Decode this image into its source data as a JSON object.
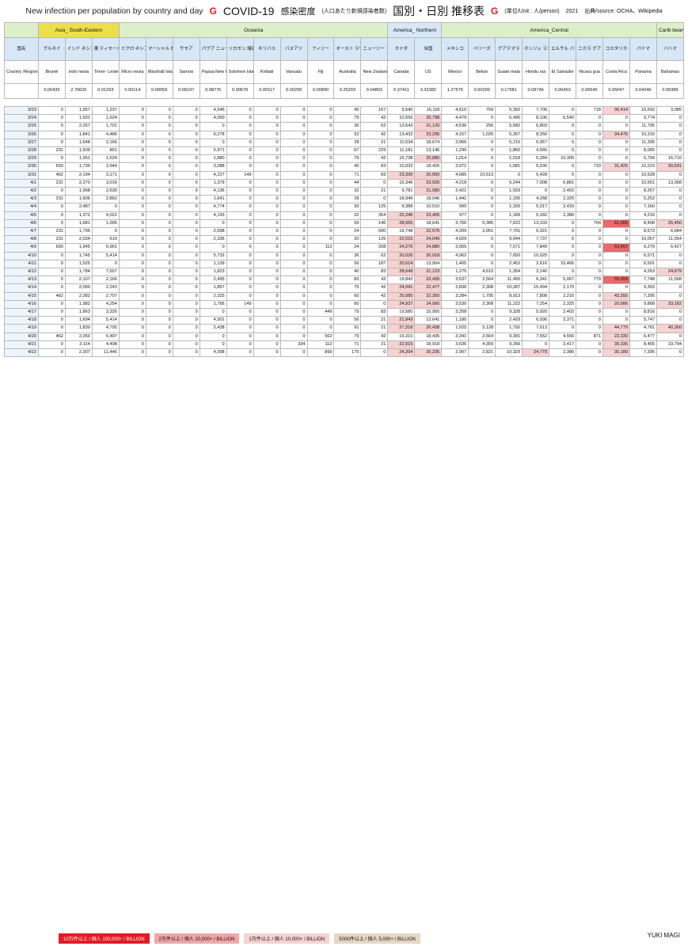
{
  "header": {
    "title_en": "New infection per population by country and day",
    "title_g": "G",
    "title_main": "COVID-19",
    "title_jp": "感染密度",
    "title_jp_small": "(人口あたり新規感染者数)",
    "title_jp2": "国別・日別 推移表",
    "title_g2": "G",
    "unit": "(単位/Unit : 人/person)",
    "year": "2021",
    "source": "出典/source: OCHA、Wikipedia"
  },
  "regions": [
    "Asia_ South-Eastern",
    "Oceania",
    "America_ Northern",
    "America_Central",
    "Carib bean"
  ],
  "label_kokumei": "国名",
  "label_region": "Country /Region",
  "countries_jp": [
    "ブルネイ",
    "インド ネシア",
    "東 ティモール",
    "ミクロ ネシア 連邦",
    "マーシャル 諸島",
    "サモア",
    "パプア ニュー ギニア",
    "ソロモン 諸島",
    "キリバス",
    "バヌアツ",
    "フィジー",
    "オースト ラリア",
    "ニュージー ランド",
    "カナダ",
    "米国",
    "メキシコ",
    "ベリーズ",
    "グアテマラ",
    "ホンジュ ラス",
    "エルサル バドル",
    "ニカラ グア",
    "コスタリカ",
    "パナマ",
    "バハマ"
  ],
  "countries_en": [
    "Brunei",
    "Indo nesia",
    "Timor- Leste",
    "Micro nesia",
    "Marshall Islands",
    "Samoa",
    "Papua New Guinea",
    "Solomon Islands",
    "Kiribati",
    "Vanuatu",
    "Fiji",
    "Australia",
    "New Zealand",
    "Canada",
    "US",
    "Mexico",
    "Belize",
    "Guate mala",
    "Hondu ras",
    "El Salvador",
    "Nicara gua",
    "Costa Rica",
    "Panama",
    "Bahamas"
  ],
  "population_factor": [
    "0.00433",
    "2.70625",
    "0.01293",
    "0.00114",
    "0.00059",
    "0.00197",
    "0.08776",
    "0.00670",
    "0.00117",
    "0.00299",
    "0.00890",
    "0.25203",
    "0.04803",
    "0.37411",
    "3.32382",
    "1.27575",
    "0.00390",
    "0.17581",
    "0.09746",
    "0.06453",
    "0.06545",
    "0.05047",
    "0.04246",
    "0.00389"
  ],
  "rows": [
    {
      "date": "3/23",
      "v": [
        "0",
        "1,957",
        "1,237",
        "0",
        "0",
        "0",
        "4,546",
        "0",
        "0",
        "0",
        "0",
        "40",
        "167",
        "9,540",
        "16,118",
        "4,610",
        "769",
        "5,392",
        "7,706",
        "0",
        "718",
        "30,414",
        "10,692",
        "3,085"
      ]
    },
    {
      "date": "3/24",
      "v": [
        "0",
        "1,931",
        "1,624",
        "0",
        "0",
        "0",
        "4,000",
        "0",
        "0",
        "0",
        "0",
        "79",
        "42",
        "10,556",
        "25,798",
        "4,479",
        "0",
        "6,490",
        "8,106",
        "6,540",
        "0",
        "0",
        "9,774",
        "0"
      ]
    },
    {
      "date": "3/25",
      "v": [
        "0",
        "2,257",
        "1,701",
        "0",
        "0",
        "0",
        "0",
        "0",
        "0",
        "0",
        "0",
        "36",
        "62",
        "13,643",
        "21,120",
        "4,536",
        "256",
        "5,682",
        "6,803",
        "0",
        "0",
        "0",
        "11,705",
        "0"
      ]
    },
    {
      "date": "3/26",
      "v": [
        "0",
        "1,841",
        "4,486",
        "0",
        "0",
        "0",
        "6,278",
        "0",
        "0",
        "0",
        "0",
        "52",
        "42",
        "13,432",
        "23,295",
        "4,157",
        "1,026",
        "5,267",
        "8,250",
        "0",
        "0",
        "34,476",
        "10,316",
        "0"
      ]
    },
    {
      "date": "3/27",
      "v": [
        "0",
        "1,648",
        "2,166",
        "0",
        "0",
        "0",
        "0",
        "0",
        "0",
        "0",
        "0",
        "28",
        "21",
        "11,534",
        "18,674",
        "3,966",
        "0",
        "5,216",
        "6,957",
        "0",
        "0",
        "0",
        "11,305",
        "0"
      ]
    },
    {
      "date": "3/28",
      "v": [
        "231",
        "1,509",
        "851",
        "0",
        "0",
        "0",
        "5,971",
        "0",
        "0",
        "0",
        "0",
        "67",
        "229",
        "11,181",
        "13,146",
        "1,290",
        "0",
        "1,860",
        "4,566",
        "0",
        "0",
        "0",
        "8,065",
        "0"
      ]
    },
    {
      "date": "3/29",
      "v": [
        "0",
        "1,951",
        "1,624",
        "0",
        "0",
        "0",
        "1,880",
        "0",
        "0",
        "0",
        "0",
        "79",
        "42",
        "16,738",
        "20,885",
        "1,014",
        "0",
        "1,018",
        "5,284",
        "10,305",
        "0",
        "0",
        "5,794",
        "16,710"
      ]
    },
    {
      "date": "3/30",
      "v": [
        "693",
        "1,730",
        "3,944",
        "0",
        "0",
        "0",
        "3,088",
        "0",
        "0",
        "0",
        "0",
        "40",
        "83",
        "10,032",
        "18,425",
        "3,972",
        "0",
        "1,581",
        "5,530",
        "0",
        "733",
        "31,425",
        "12,223",
        "30,591"
      ]
    },
    {
      "date": "3/31",
      "v": [
        "462",
        "2,194",
        "3,171",
        "0",
        "0",
        "0",
        "4,227",
        "149",
        "0",
        "0",
        "0",
        "71",
        "83",
        "23,330",
        "20,050",
        "4,685",
        "10,513",
        "0",
        "5,428",
        "0",
        "0",
        "0",
        "10,528",
        "0"
      ]
    },
    {
      "date": "4/1",
      "v": [
        "231",
        "2,270",
        "3,016",
        "0",
        "0",
        "0",
        "1,379",
        "0",
        "0",
        "0",
        "0",
        "44",
        "0",
        "15,346",
        "23,926",
        "4,218",
        "0",
        "5,244",
        "7,008",
        "6,881",
        "0",
        "0",
        "10,551",
        "13,368"
      ]
    },
    {
      "date": "4/2",
      "v": [
        "0",
        "1,968",
        "2,630",
        "0",
        "0",
        "0",
        "4,136",
        "0",
        "0",
        "0",
        "0",
        "32",
        "21",
        "9,781",
        "21,080",
        "2,421",
        "0",
        "1,593",
        "0",
        "2,402",
        "0",
        "0",
        "8,267",
        "0"
      ]
    },
    {
      "date": "4/3",
      "v": [
        "231",
        "1,606",
        "2,862",
        "0",
        "0",
        "0",
        "1,641",
        "0",
        "0",
        "0",
        "0",
        "28",
        "0",
        "18,946",
        "18,946",
        "1,441",
        "0",
        "1,155",
        "4,268",
        "2,325",
        "0",
        "0",
        "5,252",
        "0"
      ]
    },
    {
      "date": "4/4",
      "v": [
        "0",
        "2,487",
        "0",
        "0",
        "0",
        "0",
        "4,774",
        "0",
        "0",
        "0",
        "0",
        "30",
        "125",
        "9,388",
        "10,510",
        "990",
        "0",
        "1,320",
        "5,017",
        "2,433",
        "0",
        "0",
        "7,160",
        "0"
      ]
    },
    {
      "date": "4/5",
      "v": [
        "0",
        "1,372",
        "4,022",
        "0",
        "0",
        "0",
        "4,193",
        "0",
        "0",
        "0",
        "0",
        "32",
        "354",
        "22,246",
        "23,405",
        "977",
        "0",
        "1,189",
        "5,182",
        "2,386",
        "0",
        "0",
        "4,216",
        "0"
      ]
    },
    {
      "date": "4/6",
      "v": [
        "0",
        "1,681",
        "1,005",
        "0",
        "0",
        "0",
        "0",
        "0",
        "0",
        "0",
        "0",
        "56",
        "146",
        "28,665",
        "18,641",
        "3,766",
        "5,385",
        "7,622",
        "13,103",
        "0",
        "764",
        "61,066",
        "8,408",
        "25,450"
      ]
    },
    {
      "date": "4/7",
      "v": [
        "231",
        "1,796",
        "0",
        "0",
        "0",
        "0",
        "2,598",
        "0",
        "0",
        "0",
        "0",
        "24",
        "500",
        "19,748",
        "22,576",
        "4,209",
        "2,051",
        "7,701",
        "6,321",
        "0",
        "0",
        "0",
        "8,573",
        "6,684"
      ]
    },
    {
      "date": "4/8",
      "v": [
        "231",
        "2,034",
        "619",
        "0",
        "0",
        "0",
        "2,336",
        "0",
        "0",
        "0",
        "0",
        "20",
        "125",
        "22,015",
        "24,049",
        "4,029",
        "0",
        "9,044",
        "7,737",
        "0",
        "0",
        "0",
        "10,057",
        "11,054"
      ]
    },
    {
      "date": "4/9",
      "v": [
        "693",
        "1,945",
        "6,961",
        "0",
        "0",
        "0",
        "0",
        "0",
        "0",
        "0",
        "112",
        "24",
        "208",
        "24,276",
        "24,880",
        "3,955",
        "0",
        "7,571",
        "7,849",
        "0",
        "0",
        "53,457",
        "9,279",
        "6,427"
      ]
    },
    {
      "date": "4/10",
      "v": [
        "0",
        "1,745",
        "5,414",
        "0",
        "0",
        "0",
        "5,732",
        "0",
        "0",
        "0",
        "0",
        "36",
        "62",
        "20,026",
        "20,018",
        "4,962",
        "0",
        "7,650",
        "10,025",
        "0",
        "0",
        "0",
        "6,571",
        "0"
      ]
    },
    {
      "date": "4/11",
      "v": [
        "0",
        "1,525",
        "0",
        "0",
        "0",
        "0",
        "1,139",
        "0",
        "0",
        "0",
        "0",
        "56",
        "187",
        "20,614",
        "13,954",
        "1,405",
        "0",
        "2,452",
        "2,616",
        "15,466",
        "0",
        "0",
        "6,501",
        "0"
      ]
    },
    {
      "date": "4/12",
      "v": [
        "0",
        "1,784",
        "7,657",
        "0",
        "0",
        "0",
        "1,823",
        "0",
        "0",
        "0",
        "0",
        "40",
        "83",
        "28,649",
        "21,123",
        "1,275",
        "4,615",
        "1,354",
        "3,140",
        "0",
        "0",
        "0",
        "4,263",
        "24,679"
      ]
    },
    {
      "date": "4/13",
      "v": [
        "0",
        "2,107",
        "2,166",
        "0",
        "0",
        "0",
        "2,495",
        "0",
        "0",
        "0",
        "0",
        "83",
        "42",
        "19,842",
        "23,430",
        "3,537",
        "2,564",
        "11,450",
        "6,341",
        "5,067",
        "779",
        "55,459",
        "7,748",
        "11,568"
      ]
    },
    {
      "date": "4/14",
      "v": [
        "0",
        "2,090",
        "2,243",
        "0",
        "0",
        "0",
        "1,857",
        "0",
        "0",
        "0",
        "0",
        "75",
        "42",
        "24,041",
        "22,477",
        "3,836",
        "2,308",
        "10,287",
        "15,494",
        "2,170",
        "0",
        "0",
        "9,303",
        "0"
      ]
    },
    {
      "date": "4/15",
      "v": [
        "462",
        "2,282",
        "2,707",
        "0",
        "0",
        "0",
        "2,325",
        "0",
        "0",
        "0",
        "0",
        "60",
        "42",
        "25,685",
        "22,350",
        "3,284",
        "1,795",
        "8,913",
        "7,808",
        "2,216",
        "0",
        "43,392",
        "7,395",
        "0"
      ]
    },
    {
      "date": "4/16",
      "v": [
        "0",
        "1,982",
        "4,254",
        "0",
        "0",
        "0",
        "1,766",
        "149",
        "0",
        "0",
        "0",
        "60",
        "0",
        "24,937",
        "24,066",
        "3,530",
        "2,308",
        "11,222",
        "7,254",
        "2,325",
        "0",
        "20,686",
        "9,868",
        "33,162"
      ]
    },
    {
      "date": "4/17",
      "v": [
        "0",
        "1,863",
        "3,326",
        "0",
        "0",
        "0",
        "0",
        "0",
        "0",
        "0",
        "449",
        "79",
        "83",
        "19,580",
        "15,955",
        "3,258",
        "0",
        "9,328",
        "5,920",
        "2,402",
        "0",
        "0",
        "8,816",
        "0"
      ]
    },
    {
      "date": "4/18",
      "v": [
        "0",
        "1,694",
        "5,414",
        "0",
        "0",
        "0",
        "4,501",
        "0",
        "0",
        "0",
        "0",
        "56",
        "21",
        "21,943",
        "12,641",
        "1,180",
        "0",
        "2,429",
        "6,936",
        "2,371",
        "0",
        "0",
        "5,747",
        "0"
      ]
    },
    {
      "date": "4/19",
      "v": [
        "0",
        "1,830",
        "4,795",
        "0",
        "0",
        "0",
        "2,438",
        "0",
        "0",
        "0",
        "0",
        "91",
        "21",
        "27,318",
        "20,438",
        "1,025",
        "5,128",
        "1,792",
        "7,613",
        "0",
        "0",
        "44,779",
        "4,781",
        "40,360"
      ]
    },
    {
      "date": "4/20",
      "v": [
        "462",
        "2,050",
        "6,497",
        "0",
        "0",
        "0",
        "0",
        "0",
        "0",
        "0",
        "562",
        "79",
        "42",
        "19,315",
        "18,435",
        "3,341",
        "2,564",
        "9,391",
        "7,552",
        "4,556",
        "871",
        "22,330",
        "6,477",
        "0"
      ]
    },
    {
      "date": "4/21",
      "v": [
        "0",
        "2,114",
        "4,408",
        "0",
        "0",
        "0",
        "0",
        "0",
        "0",
        "334",
        "112",
        "71",
        "21",
        "22,015",
        "18,918",
        "3,636",
        "4,359",
        "9,266",
        "0",
        "2,417",
        "0",
        "30,335",
        "8,455",
        "19,794"
      ]
    },
    {
      "date": "4/22",
      "v": [
        "0",
        "2,307",
        "11,446",
        "0",
        "0",
        "0",
        "4,398",
        "0",
        "0",
        "0",
        "899",
        "175",
        "0",
        "24,204",
        "20,235",
        "2,907",
        "2,821",
        "10,329",
        "24,779",
        "2,386",
        "0",
        "35,189",
        "7,395",
        "0"
      ]
    }
  ],
  "legend": [
    "10万件以上 / 個人 100,000+ / BILLION",
    "2万件以上 / 個人 20,000+ / BILLION",
    "1万件以上 / 個人 10,000+ / BILLION",
    "5000件以上 / 個人 5,000+ / BILLION"
  ],
  "logo": "YUKI MAGI"
}
